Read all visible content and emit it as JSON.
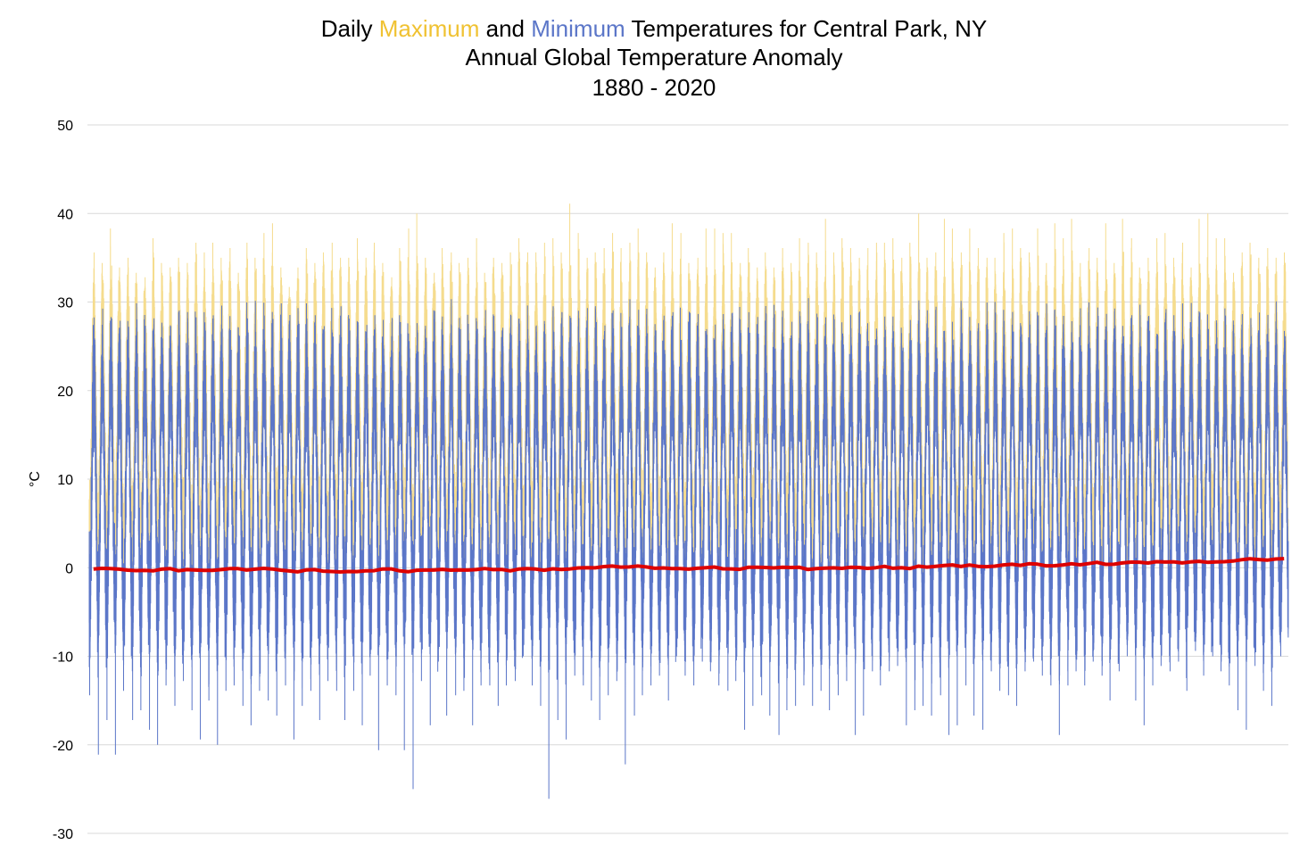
{
  "chart_data": {
    "type": "line",
    "title_parts": [
      {
        "text": "Daily ",
        "color": "#000000"
      },
      {
        "text": "Maximum",
        "color": "#f0c232"
      },
      {
        "text": " and ",
        "color": "#000000"
      },
      {
        "text": "Minimum",
        "color": "#5b76c8"
      },
      {
        "text": " Temperatures for Central Park, NY",
        "color": "#000000"
      }
    ],
    "subtitle": "Annual Global Temperature Anomaly",
    "subtitle_color": "#dd0000",
    "period": "1880 - 2020",
    "ylabel": "°C",
    "ylim": [
      -30,
      50
    ],
    "yticks": [
      "50",
      "40",
      "30",
      "20",
      "10",
      "0",
      "-10",
      "-20",
      "-30"
    ],
    "grid": true,
    "years": [
      1880,
      2020
    ],
    "series": [
      {
        "name": "Daily Maximum",
        "color": "#f5dc8e",
        "annual_peak": [
          35.6,
          34.4,
          38.3,
          33.9,
          35.0,
          33.3,
          32.8,
          37.2,
          34.4,
          33.9,
          35.0,
          34.4,
          36.7,
          35.6,
          36.7,
          35.0,
          36.1,
          33.3,
          36.7,
          35.0,
          37.8,
          38.9,
          33.9,
          31.7,
          33.9,
          36.1,
          34.4,
          35.6,
          36.7,
          35.0,
          35.0,
          37.2,
          35.0,
          36.7,
          34.4,
          32.8,
          36.1,
          38.3,
          40.0,
          35.0,
          33.3,
          36.1,
          35.6,
          34.4,
          35.0,
          37.2,
          33.3,
          35.0,
          34.4,
          35.6,
          37.2,
          35.6,
          35.6,
          36.7,
          37.2,
          35.6,
          41.1,
          37.8,
          35.0,
          35.6,
          36.1,
          37.8,
          36.1,
          36.7,
          38.3,
          35.6,
          33.9,
          35.6,
          38.9,
          37.8,
          34.4,
          35.0,
          38.3,
          38.3,
          37.8,
          37.8,
          34.4,
          36.1,
          33.9,
          35.6,
          33.9,
          36.1,
          34.4,
          37.2,
          36.7,
          35.6,
          39.4,
          35.6,
          37.2,
          36.1,
          35.0,
          36.1,
          36.7,
          36.7,
          37.2,
          35.0,
          36.7,
          40.0,
          35.0,
          35.6,
          39.4,
          38.3,
          35.6,
          38.3,
          36.1,
          35.0,
          35.0,
          37.8,
          38.3,
          36.1,
          35.6,
          38.3,
          34.4,
          38.9,
          37.2,
          39.4,
          34.4,
          36.1,
          35.0,
          38.9,
          34.4,
          39.4,
          37.2,
          33.9,
          35.0,
          37.2,
          37.8,
          35.0,
          36.7,
          33.9,
          39.4,
          40.0,
          37.2,
          37.2,
          33.3,
          35.6,
          36.7,
          35.0,
          36.1,
          35.0,
          35.6
        ]
      },
      {
        "name": "Daily Minimum",
        "color": "#5b76c8",
        "annual_trough": [
          -14.4,
          -21.1,
          -17.2,
          -21.1,
          -13.9,
          -17.2,
          -16.1,
          -18.3,
          -20.0,
          -13.3,
          -15.6,
          -12.8,
          -16.1,
          -19.4,
          -15.0,
          -20.0,
          -13.9,
          -13.3,
          -15.6,
          -17.8,
          -13.9,
          -15.0,
          -16.7,
          -13.3,
          -19.4,
          -15.6,
          -13.9,
          -17.2,
          -12.8,
          -13.9,
          -17.2,
          -13.9,
          -17.8,
          -12.2,
          -20.6,
          -13.3,
          -14.4,
          -20.6,
          -25.0,
          -12.8,
          -17.8,
          -10.6,
          -16.7,
          -14.4,
          -13.9,
          -17.8,
          -13.3,
          -13.3,
          -15.6,
          -13.3,
          -12.8,
          -10.0,
          -13.3,
          -15.6,
          -26.1,
          -17.2,
          -19.4,
          -12.2,
          -13.3,
          -15.0,
          -17.2,
          -14.4,
          -12.8,
          -22.2,
          -16.7,
          -14.4,
          -13.3,
          -12.2,
          -15.0,
          -10.0,
          -12.2,
          -13.3,
          -10.6,
          -11.7,
          -13.3,
          -13.9,
          -12.8,
          -18.3,
          -15.6,
          -14.4,
          -16.7,
          -18.9,
          -16.1,
          -15.6,
          -13.3,
          -15.6,
          -13.9,
          -16.1,
          -14.4,
          -12.8,
          -18.9,
          -16.7,
          -11.7,
          -13.3,
          -11.7,
          -11.1,
          -17.8,
          -16.1,
          -15.6,
          -16.7,
          -14.4,
          -18.9,
          -17.8,
          -13.3,
          -16.7,
          -18.3,
          -11.7,
          -13.9,
          -14.4,
          -15.6,
          -11.7,
          -10.6,
          -12.2,
          -13.3,
          -18.9,
          -13.3,
          -11.7,
          -13.3,
          -10.6,
          -12.2,
          -15.0,
          -11.7,
          -10.0,
          -15.0,
          -17.8,
          -13.3,
          -11.1,
          -11.7,
          -10.6,
          -13.9,
          -9.4,
          -12.2,
          -10.0,
          -11.7,
          -13.3,
          -16.1,
          -18.3,
          -11.1,
          -13.9,
          -15.6,
          -10.0
        ]
      },
      {
        "name": "Annual Global Temperature Anomaly",
        "color": "#dd0000",
        "values": [
          -0.16,
          -0.08,
          -0.1,
          -0.17,
          -0.28,
          -0.33,
          -0.31,
          -0.36,
          -0.17,
          -0.1,
          -0.35,
          -0.22,
          -0.27,
          -0.31,
          -0.3,
          -0.22,
          -0.11,
          -0.11,
          -0.27,
          -0.17,
          -0.08,
          -0.15,
          -0.28,
          -0.37,
          -0.47,
          -0.26,
          -0.22,
          -0.39,
          -0.43,
          -0.48,
          -0.43,
          -0.44,
          -0.36,
          -0.34,
          -0.15,
          -0.14,
          -0.36,
          -0.46,
          -0.29,
          -0.27,
          -0.27,
          -0.19,
          -0.28,
          -0.26,
          -0.27,
          -0.22,
          -0.1,
          -0.22,
          -0.2,
          -0.36,
          -0.16,
          -0.1,
          -0.16,
          -0.29,
          -0.13,
          -0.2,
          -0.15,
          -0.03,
          0.0,
          -0.02,
          0.13,
          0.19,
          0.07,
          0.09,
          0.2,
          0.09,
          -0.07,
          -0.03,
          -0.11,
          -0.11,
          -0.17,
          -0.07,
          0.01,
          0.08,
          -0.13,
          -0.14,
          -0.19,
          0.05,
          0.06,
          0.03,
          -0.03,
          0.06,
          0.03,
          0.05,
          -0.2,
          -0.11,
          -0.06,
          -0.02,
          -0.08,
          0.05,
          0.03,
          -0.08,
          0.01,
          0.16,
          -0.07,
          -0.01,
          -0.1,
          0.18,
          0.07,
          0.16,
          0.26,
          0.32,
          0.14,
          0.31,
          0.16,
          0.12,
          0.18,
          0.32,
          0.39,
          0.27,
          0.45,
          0.4,
          0.22,
          0.23,
          0.32,
          0.45,
          0.33,
          0.46,
          0.61,
          0.38,
          0.39,
          0.54,
          0.63,
          0.62,
          0.53,
          0.68,
          0.64,
          0.66,
          0.54,
          0.65,
          0.72,
          0.61,
          0.65,
          0.68,
          0.75,
          0.9,
          1.01,
          0.92,
          0.85,
          0.98,
          1.02
        ]
      }
    ]
  }
}
